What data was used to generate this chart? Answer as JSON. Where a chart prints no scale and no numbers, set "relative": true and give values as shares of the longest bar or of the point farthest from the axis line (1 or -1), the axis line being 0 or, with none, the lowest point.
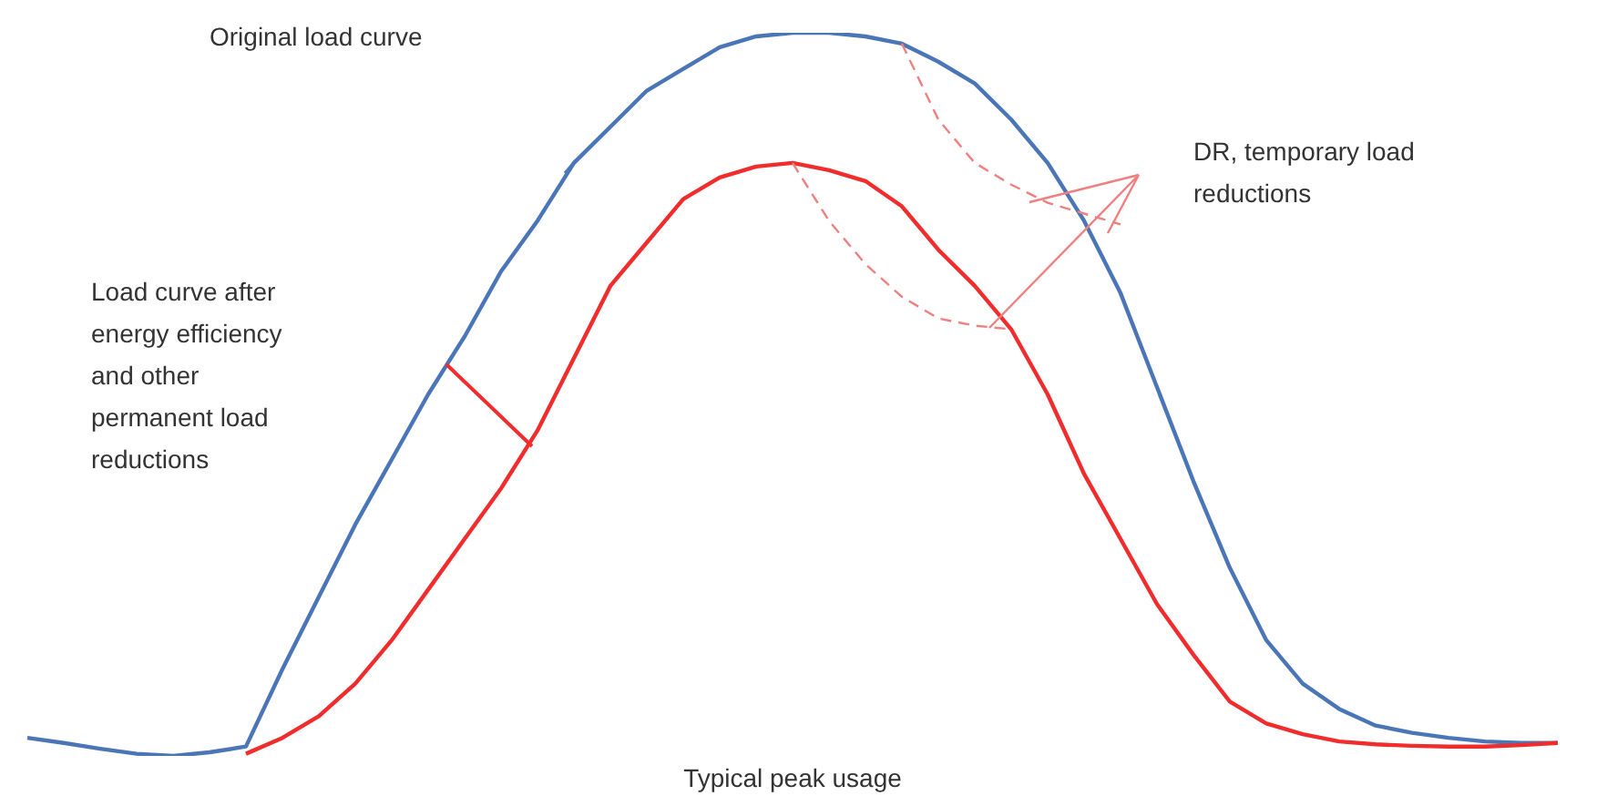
{
  "chart_data": {
    "type": "line",
    "relative": true,
    "xlabel": "Typical peak usage",
    "grid": false,
    "marker": "none",
    "categories": [
      null,
      null,
      null,
      null,
      null,
      null,
      null,
      null,
      null,
      null,
      null,
      null,
      null,
      null,
      null,
      null,
      null,
      null,
      null,
      null,
      null,
      null,
      null,
      null,
      null,
      null,
      null,
      null,
      null,
      null,
      null,
      null,
      null,
      null,
      null,
      null,
      null,
      null,
      null,
      null,
      null,
      null,
      null
    ],
    "series": [
      {
        "color": "#4a76b8",
        "values": [
          0.025,
          0.018,
          0.01,
          0.003,
          0,
          0.005,
          0.013,
          0.12,
          0.22,
          0.32,
          0.41,
          0.5,
          0.58,
          0.67,
          0.74,
          0.82,
          0.87,
          0.92,
          0.95,
          0.98,
          0.995,
          1,
          1,
          0.995,
          0.985,
          0.96,
          0.93,
          0.88,
          0.82,
          0.74,
          0.64,
          0.51,
          0.38,
          0.26,
          0.16,
          0.1,
          0.065,
          0.042,
          0.032,
          0.025,
          0.02,
          0.018,
          0.018
        ]
      },
      {
        "color": "#f02c2c",
        "values": [
          null,
          null,
          null,
          null,
          null,
          null,
          0.003,
          0.025,
          0.055,
          0.1,
          0.16,
          0.23,
          0.3,
          0.37,
          0.45,
          0.55,
          0.65,
          0.71,
          0.77,
          0.8,
          0.815,
          0.82,
          0.81,
          0.795,
          0.76,
          0.7,
          0.65,
          0.59,
          0.5,
          0.39,
          0.3,
          0.21,
          0.14,
          0.075,
          0.045,
          0.03,
          0.02,
          0.016,
          0.014,
          0.013,
          0.013,
          0.015,
          0.018
        ]
      },
      {
        "color": "#f08080",
        "line_style": "dashed",
        "values": [
          null,
          null,
          null,
          null,
          null,
          null,
          null,
          null,
          null,
          null,
          null,
          null,
          null,
          null,
          null,
          null,
          null,
          null,
          null,
          null,
          null,
          null,
          null,
          null,
          0.985,
          0.88,
          0.82,
          0.79,
          0.765,
          0.75,
          0.735,
          null,
          null,
          null,
          null,
          null,
          null,
          null,
          null,
          null,
          null,
          null,
          null
        ]
      },
      {
        "color": "#f08080",
        "line_style": "dashed",
        "values": [
          null,
          null,
          null,
          null,
          null,
          null,
          null,
          null,
          null,
          null,
          null,
          null,
          null,
          null,
          null,
          null,
          null,
          null,
          null,
          null,
          null,
          0.82,
          0.74,
          0.68,
          0.635,
          0.605,
          0.595,
          0.59,
          null,
          null,
          null,
          null,
          null,
          null,
          null,
          null,
          null,
          null,
          null,
          null,
          null,
          null,
          null
        ]
      }
    ],
    "annotations": [
      "Original load curve",
      "Load curve after energy efficiency and other permanent load reductions",
      "DR, temporary load reductions"
    ]
  }
}
